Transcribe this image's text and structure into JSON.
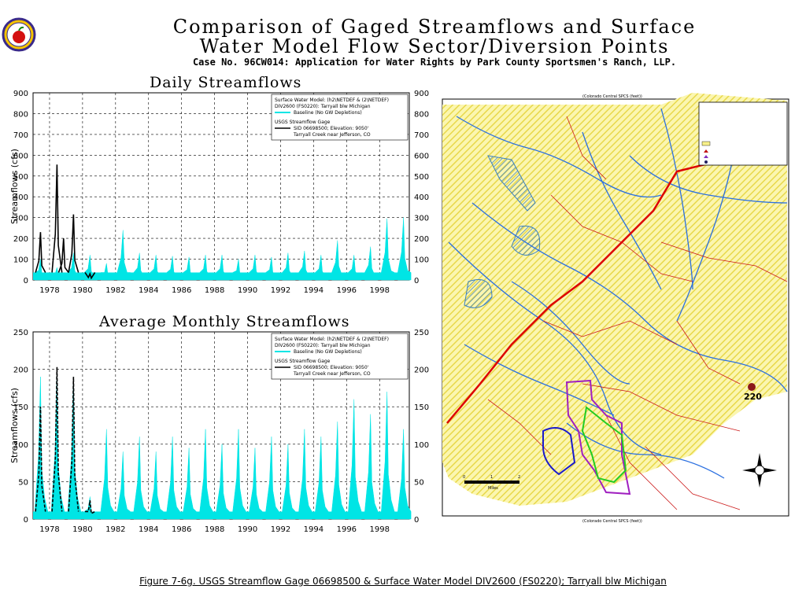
{
  "header": {
    "title_line1": "Comparison of Gaged Streamflows and Surface",
    "title_line2": "Water Model Flow Sector/Diversion Points",
    "subtitle": "Case No. 96CW014: Application for Water Rights by Park County Sportsmen's Ranch, LLP."
  },
  "caption": "Figure 7-6g. USGS Streamflow Gage 06698500 & Surface Water Model DIV2600 (FS0220); Tarryall blw Michigan",
  "legend": {
    "model_line1": "Surface Water Model: (h2\\NETDEF & (2\\NETDEF)",
    "model_line2": "DIV2600 (FS0220): Tarryall blw Michigan",
    "model_series": "Baseline (No GW Depletions)",
    "gage_header": "USGS Streamflow Gage",
    "gage_line1": "SID 06698500; Elevation: 9050'",
    "gage_line2": "Tarryall Creek near Jefferson, CO"
  },
  "map_labels": {
    "site_number": "220",
    "coords_top": "(Colorado Central SPCS (feet))",
    "coords_bottom": "(Colorado Central SPCS (feet))",
    "scale_label": "Miles"
  },
  "colors": {
    "model_series": "#00e5e5",
    "gage_series": "#000000",
    "map_fill": "#f8f08a",
    "river": "#2a6fe0",
    "road": "#cc1a1a"
  },
  "chart_data": [
    {
      "type": "area",
      "title": "Daily Streamflows",
      "xlabel": "",
      "ylabel": "Streamflows (cfs)",
      "ylim": [
        0,
        900
      ],
      "yticks": [
        0,
        100,
        200,
        300,
        400,
        500,
        600,
        700,
        800,
        900
      ],
      "xlim": [
        1977,
        1999.8
      ],
      "xticks": [
        "1978",
        "1980",
        "1982",
        "1984",
        "1986",
        "1988",
        "1990",
        "1992",
        "1994",
        "1996",
        "1998"
      ],
      "grid": true,
      "legend_position": "top-right",
      "series": [
        {
          "name": "Baseline (No GW Depletions)",
          "x": [
            1977.45,
            1978.45,
            1979.45,
            1980.45,
            1981.45,
            1982.45,
            1983.45,
            1984.45,
            1985.45,
            1986.45,
            1987.45,
            1988.45,
            1989.45,
            1990.45,
            1991.45,
            1992.45,
            1993.45,
            1994.45,
            1995.45,
            1996.45,
            1997.45,
            1998.45,
            1999.45
          ],
          "values": [
            100,
            60,
            130,
            120,
            80,
            240,
            130,
            120,
            115,
            110,
            120,
            120,
            100,
            120,
            110,
            130,
            140,
            120,
            190,
            120,
            160,
            295,
            300
          ]
        },
        {
          "name": "Tarryall Creek near Jefferson, CO",
          "x": [
            1977.45,
            1978.45,
            1978.85,
            1979.45,
            1980.45
          ],
          "values": [
            230,
            555,
            200,
            315,
            30
          ]
        }
      ]
    },
    {
      "type": "area",
      "title": "Average Monthly Streamflows",
      "xlabel": "",
      "ylabel": "Streamflows (cfs)",
      "ylim": [
        0,
        250
      ],
      "yticks": [
        0,
        50,
        100,
        150,
        200,
        250
      ],
      "xlim": [
        1977,
        1999.8
      ],
      "xticks": [
        "1978",
        "1980",
        "1982",
        "1984",
        "1986",
        "1988",
        "1990",
        "1992",
        "1994",
        "1996",
        "1998"
      ],
      "grid": true,
      "legend_position": "top-right",
      "series": [
        {
          "name": "Baseline (No GW Depletions)",
          "x": [
            1977.45,
            1978.45,
            1979.45,
            1980.45,
            1981.45,
            1982.45,
            1983.45,
            1984.45,
            1985.45,
            1986.45,
            1987.45,
            1988.45,
            1989.45,
            1990.45,
            1991.45,
            1992.45,
            1993.45,
            1994.45,
            1995.45,
            1996.45,
            1997.45,
            1998.45,
            1999.45
          ],
          "values": [
            190,
            200,
            190,
            30,
            120,
            90,
            110,
            90,
            110,
            95,
            120,
            100,
            120,
            95,
            110,
            100,
            120,
            110,
            130,
            160,
            140,
            170,
            120
          ]
        },
        {
          "name": "Tarryall Creek near Jefferson, CO",
          "x": [
            1977.45,
            1978.45,
            1979.45,
            1980.45
          ],
          "values": [
            150,
            203,
            190,
            25
          ]
        }
      ]
    }
  ]
}
